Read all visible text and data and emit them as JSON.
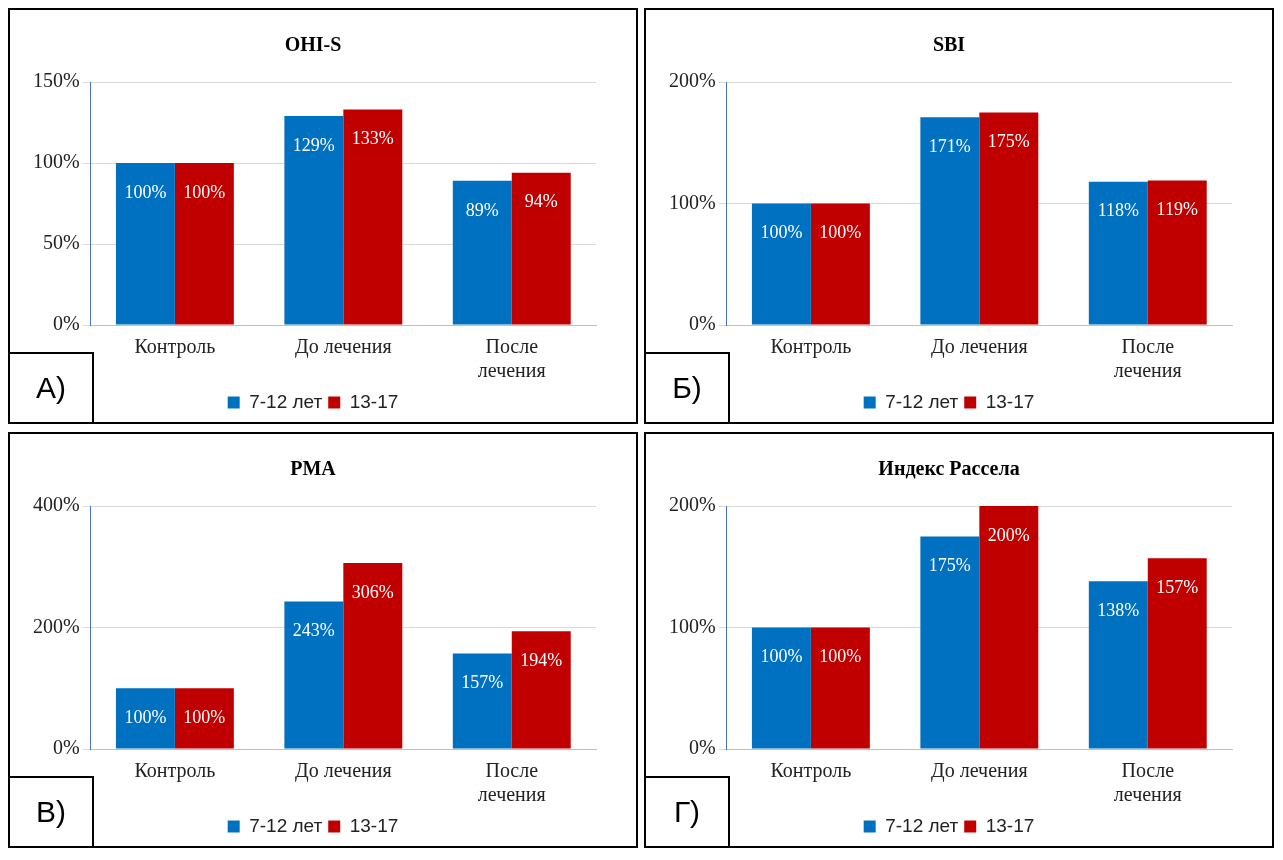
{
  "chart_data": [
    {
      "type": "bar",
      "title": "OHI-S",
      "categories": [
        "Контроль",
        "До лечения",
        "После лечения"
      ],
      "series": [
        {
          "name": "7-12 лет",
          "color": "#0070c0",
          "values": [
            100,
            129,
            89
          ],
          "value_labels": [
            "100%",
            "129%",
            "89%"
          ]
        },
        {
          "name": "13-17",
          "color": "#c00000",
          "values": [
            100,
            133,
            94
          ],
          "value_labels": [
            "100%",
            "133%",
            "94%"
          ]
        }
      ],
      "ylim": [
        0,
        150
      ],
      "yticks": [
        {
          "value": 0,
          "label": "0%"
        },
        {
          "value": 50,
          "label": "50%"
        },
        {
          "value": 100,
          "label": "100%"
        },
        {
          "value": 150,
          "label": "150%"
        }
      ],
      "grid": "y",
      "legend": "bottom",
      "annotations": [
        "А)"
      ]
    },
    {
      "type": "bar",
      "title": "SBI",
      "categories": [
        "Контроль",
        "До лечения",
        "После лечения"
      ],
      "series": [
        {
          "name": "7-12 лет",
          "color": "#0070c0",
          "values": [
            100,
            171,
            118
          ],
          "value_labels": [
            "100%",
            "171%",
            "118%"
          ]
        },
        {
          "name": "13-17",
          "color": "#c00000",
          "values": [
            100,
            175,
            119
          ],
          "value_labels": [
            "100%",
            "175%",
            "119%"
          ]
        }
      ],
      "ylim": [
        0,
        200
      ],
      "yticks": [
        {
          "value": 0,
          "label": "0%"
        },
        {
          "value": 100,
          "label": "100%"
        },
        {
          "value": 200,
          "label": "200%"
        }
      ],
      "grid": "y",
      "legend": "bottom",
      "annotations": [
        "Б)"
      ]
    },
    {
      "type": "bar",
      "title": "PMA",
      "categories": [
        "Контроль",
        "До лечения",
        "После лечения"
      ],
      "series": [
        {
          "name": "7-12 лет",
          "color": "#0070c0",
          "values": [
            100,
            243,
            157
          ],
          "value_labels": [
            "100%",
            "243%",
            "157%"
          ]
        },
        {
          "name": "13-17",
          "color": "#c00000",
          "values": [
            100,
            306,
            194
          ],
          "value_labels": [
            "100%",
            "306%",
            "194%"
          ]
        }
      ],
      "ylim": [
        0,
        400
      ],
      "yticks": [
        {
          "value": 0,
          "label": "0%"
        },
        {
          "value": 200,
          "label": "200%"
        },
        {
          "value": 400,
          "label": "400%"
        }
      ],
      "grid": "y",
      "legend": "bottom",
      "annotations": [
        "В)"
      ]
    },
    {
      "type": "bar",
      "title": "Индекс Рассела",
      "categories": [
        "Контроль",
        "До лечения",
        "После лечения"
      ],
      "series": [
        {
          "name": "7-12 лет",
          "color": "#0070c0",
          "values": [
            100,
            175,
            138
          ],
          "value_labels": [
            "100%",
            "175%",
            "138%"
          ]
        },
        {
          "name": "13-17",
          "color": "#c00000",
          "values": [
            100,
            200,
            157
          ],
          "value_labels": [
            "100%",
            "200%",
            "157%"
          ]
        }
      ],
      "ylim": [
        0,
        200
      ],
      "yticks": [
        {
          "value": 0,
          "label": "0%"
        },
        {
          "value": 100,
          "label": "100%"
        },
        {
          "value": 200,
          "label": "200%"
        }
      ],
      "grid": "y",
      "legend": "bottom",
      "annotations": [
        "Г)"
      ]
    }
  ]
}
